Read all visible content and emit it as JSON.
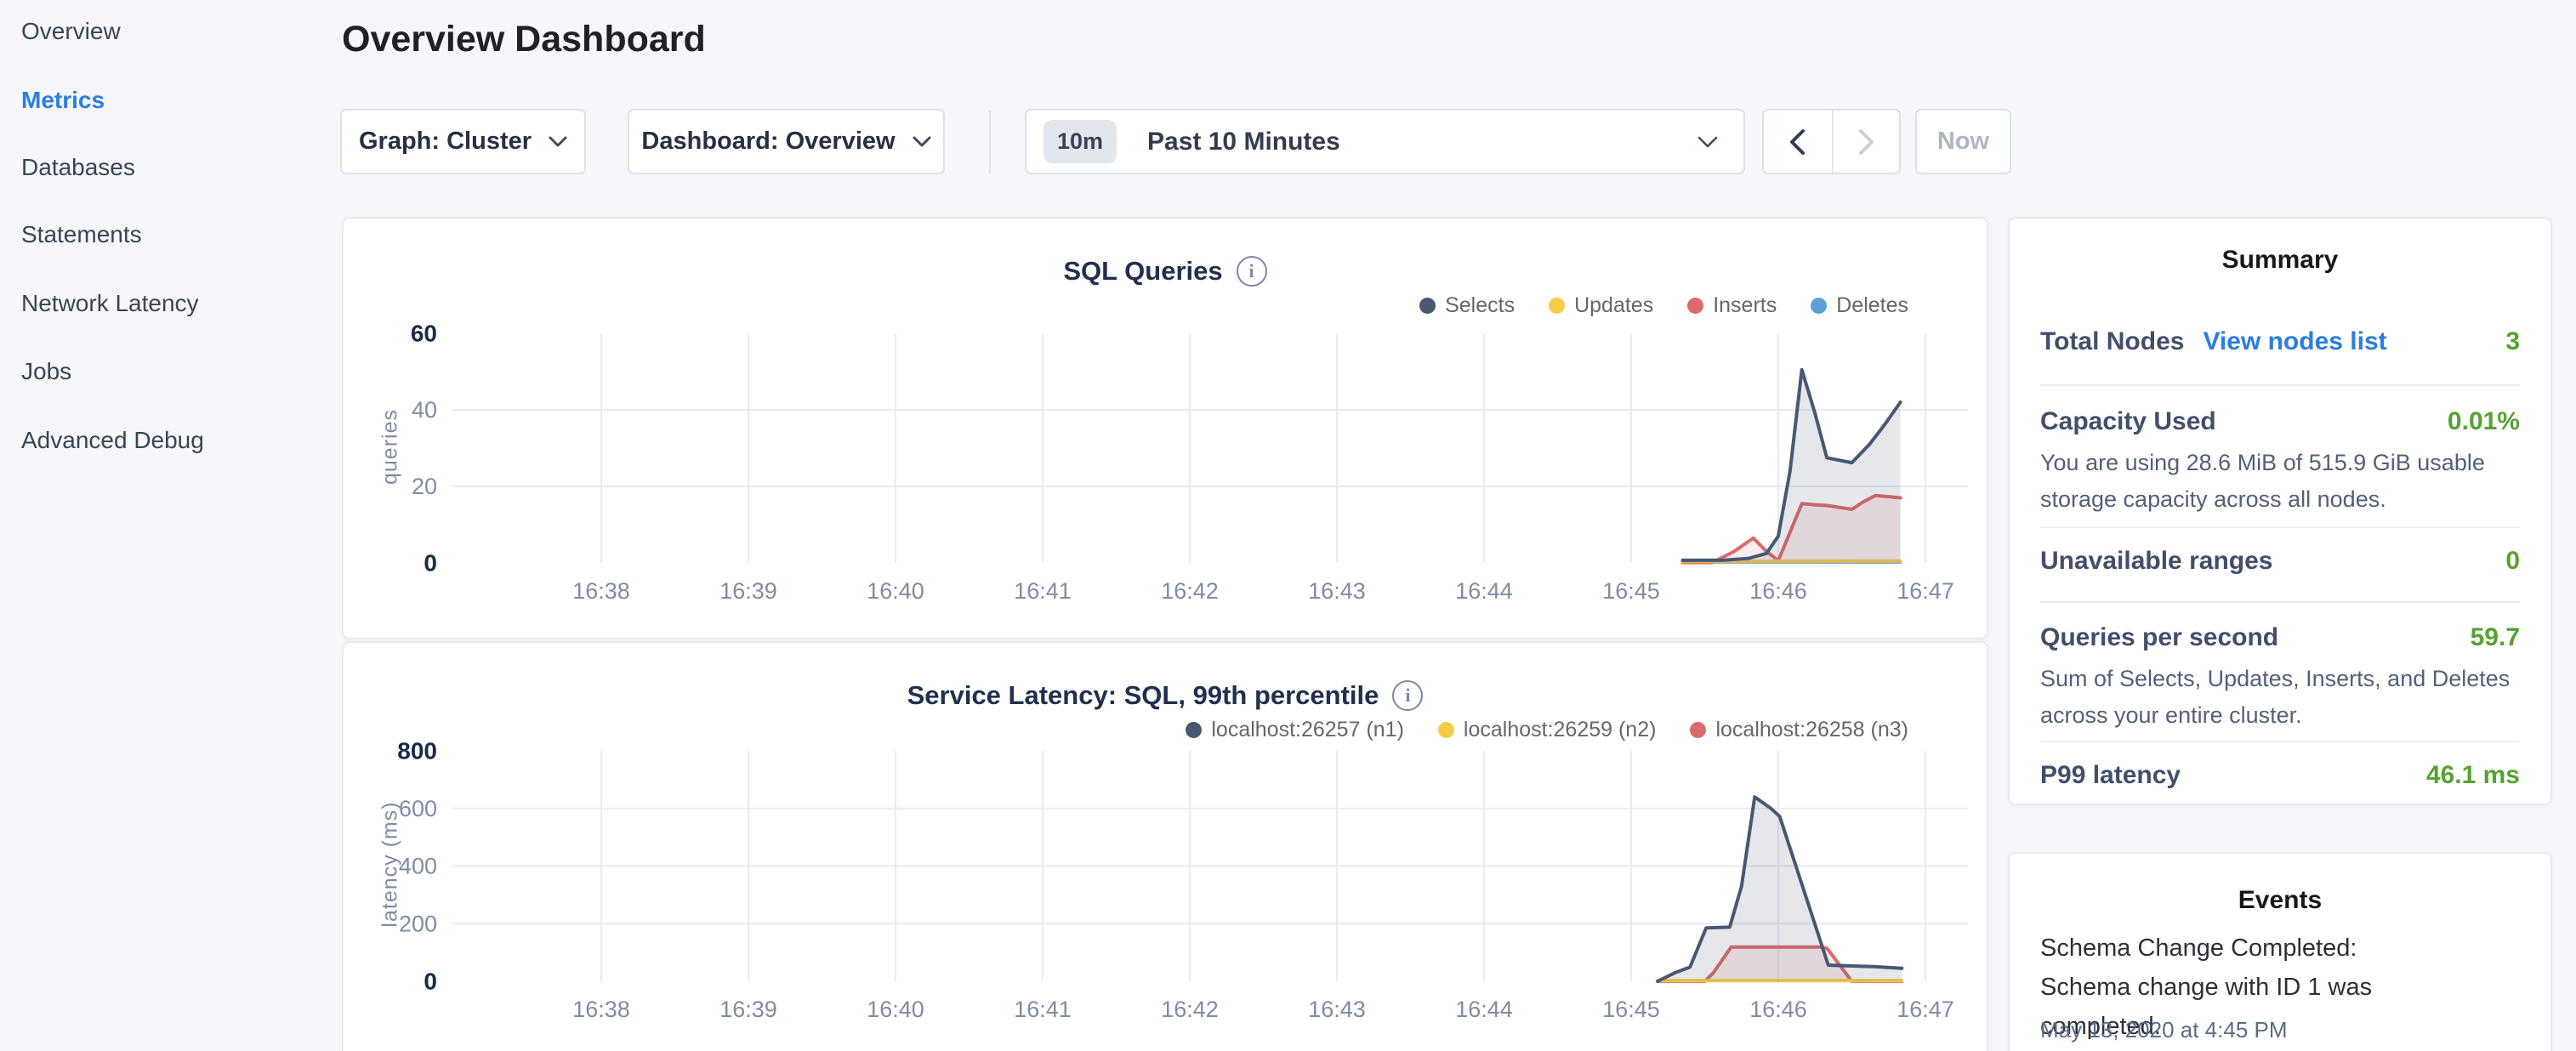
{
  "sidebar": {
    "items": [
      {
        "label": "Overview",
        "active": false
      },
      {
        "label": "Metrics",
        "active": true
      },
      {
        "label": "Databases",
        "active": false
      },
      {
        "label": "Statements",
        "active": false
      },
      {
        "label": "Network Latency",
        "active": false
      },
      {
        "label": "Jobs",
        "active": false
      },
      {
        "label": "Advanced Debug",
        "active": false
      }
    ]
  },
  "header": {
    "title": "Overview Dashboard"
  },
  "toolbar": {
    "graph_label": "Graph: Cluster",
    "dashboard_label": "Dashboard: Overview",
    "time_badge": "10m",
    "time_range_label": "Past 10 Minutes",
    "now_label": "Now"
  },
  "colors": {
    "accent_blue": "#2a7de1",
    "value_green": "#56a230",
    "series_navy": "#475872",
    "series_yellow": "#f7cb47",
    "series_red": "#dd6a6a",
    "series_blue": "#5c9fd3"
  },
  "chart_data": [
    {
      "type": "area",
      "title": "SQL Queries",
      "ylabel": "queries",
      "ylim": [
        0,
        60
      ],
      "x_tick_labels": [
        "16:38",
        "16:39",
        "16:40",
        "16:41",
        "16:42",
        "16:43",
        "16:44",
        "16:45",
        "16:46",
        "16:47"
      ],
      "x_tick_minutes": [
        38,
        39,
        40,
        41,
        42,
        43,
        44,
        45,
        46,
        47
      ],
      "y_ticks": [
        {
          "label": "0",
          "v": 0,
          "strong": true,
          "grid": false
        },
        {
          "label": "20",
          "v": 20,
          "strong": false,
          "grid": true
        },
        {
          "label": "40",
          "v": 40,
          "strong": false,
          "grid": true
        },
        {
          "label": "60",
          "v": 60,
          "strong": true,
          "grid": false
        }
      ],
      "legend_position": "top-right",
      "series": [
        {
          "name": "Selects",
          "color": "#475872",
          "fill": "rgba(71,88,114,0.14)",
          "points": [
            [
              45.35,
              0.7
            ],
            [
              45.62,
              0.7
            ],
            [
              45.8,
              1.2
            ],
            [
              45.92,
              2.5
            ],
            [
              46.0,
              7
            ],
            [
              46.08,
              24
            ],
            [
              46.16,
              50.5
            ],
            [
              46.25,
              39
            ],
            [
              46.33,
              27.5
            ],
            [
              46.42,
              26.8
            ],
            [
              46.5,
              26.2
            ],
            [
              46.62,
              31
            ],
            [
              46.72,
              36
            ],
            [
              46.83,
              42
            ]
          ]
        },
        {
          "name": "Updates",
          "color": "#f7cb47",
          "fill": "rgba(247,203,71,0.15)",
          "points": [
            [
              45.35,
              0.4
            ],
            [
              46.83,
              0.5
            ]
          ]
        },
        {
          "name": "Inserts",
          "color": "#dd6a6a",
          "fill": "rgba(221,106,106,0.12)",
          "points": [
            [
              45.35,
              0.1
            ],
            [
              45.55,
              0.1
            ],
            [
              45.7,
              3
            ],
            [
              45.83,
              6.5
            ],
            [
              45.92,
              3
            ],
            [
              46.0,
              0.6
            ],
            [
              46.08,
              8
            ],
            [
              46.16,
              15.5
            ],
            [
              46.25,
              15.2
            ],
            [
              46.33,
              15
            ],
            [
              46.42,
              14.5
            ],
            [
              46.5,
              14
            ],
            [
              46.58,
              16
            ],
            [
              46.66,
              17.6
            ],
            [
              46.75,
              17.3
            ],
            [
              46.83,
              17
            ]
          ]
        },
        {
          "name": "Deletes",
          "color": "#5c9fd3",
          "fill": "rgba(92,159,211,0.15)",
          "points": [
            [
              45.35,
              0.25
            ],
            [
              46.83,
              0.25
            ]
          ]
        }
      ]
    },
    {
      "type": "area",
      "title": "Service Latency: SQL, 99th percentile",
      "ylabel": "latency (ms)",
      "ylim": [
        0,
        800
      ],
      "x_tick_labels": [
        "16:38",
        "16:39",
        "16:40",
        "16:41",
        "16:42",
        "16:43",
        "16:44",
        "16:45",
        "16:46",
        "16:47"
      ],
      "x_tick_minutes": [
        38,
        39,
        40,
        41,
        42,
        43,
        44,
        45,
        46,
        47
      ],
      "y_ticks": [
        {
          "label": "0",
          "v": 0,
          "strong": true,
          "grid": false
        },
        {
          "label": "200",
          "v": 200,
          "strong": false,
          "grid": true
        },
        {
          "label": "400",
          "v": 400,
          "strong": false,
          "grid": true
        },
        {
          "label": "600",
          "v": 600,
          "strong": false,
          "grid": true
        },
        {
          "label": "800",
          "v": 800,
          "strong": true,
          "grid": false
        }
      ],
      "legend_position": "top-right",
      "series": [
        {
          "name": "localhost:26257 (n1)",
          "color": "#475872",
          "fill": "rgba(71,88,114,0.14)",
          "points": [
            [
              45.18,
              0
            ],
            [
              45.3,
              30
            ],
            [
              45.4,
              49
            ],
            [
              45.51,
              185
            ],
            [
              45.67,
              188
            ],
            [
              45.75,
              330
            ],
            [
              45.84,
              640
            ],
            [
              45.95,
              600
            ],
            [
              46.01,
              572
            ],
            [
              46.34,
              56
            ],
            [
              46.5,
              53
            ],
            [
              46.65,
              51
            ],
            [
              46.84,
              45
            ]
          ]
        },
        {
          "name": "localhost:26259 (n2)",
          "color": "#f7cb47",
          "fill": "rgba(247,203,71,0.15)",
          "points": [
            [
              45.18,
              2
            ],
            [
              46.84,
              2
            ]
          ]
        },
        {
          "name": "localhost:26258 (n3)",
          "color": "#dd6a6a",
          "fill": "rgba(221,106,106,0.12)",
          "points": [
            [
              45.18,
              0
            ],
            [
              45.5,
              0
            ],
            [
              45.56,
              30
            ],
            [
              45.68,
              119
            ],
            [
              46.28,
              119
            ],
            [
              46.33,
              115
            ],
            [
              46.5,
              0
            ],
            [
              46.84,
              0
            ]
          ]
        }
      ]
    }
  ],
  "summary": {
    "title": "Summary",
    "rows": [
      {
        "label": "Total Nodes",
        "link": "View nodes list",
        "value": "3"
      },
      {
        "label": "Capacity Used",
        "value": "0.01%",
        "description": "You are using 28.6 MiB of 515.9 GiB usable storage capacity across all nodes."
      },
      {
        "label": "Unavailable ranges",
        "value": "0"
      },
      {
        "label": "Queries per second",
        "value": "59.7",
        "description": "Sum of Selects, Updates, Inserts, and Deletes across your entire cluster."
      },
      {
        "label": "P99 latency",
        "value": "46.1 ms"
      }
    ]
  },
  "events": {
    "title": "Events",
    "items": [
      {
        "message": "Schema Change Completed: Schema change with ID 1 was completed.",
        "timestamp": "May 13, 2020 at 4:45 PM"
      }
    ]
  }
}
